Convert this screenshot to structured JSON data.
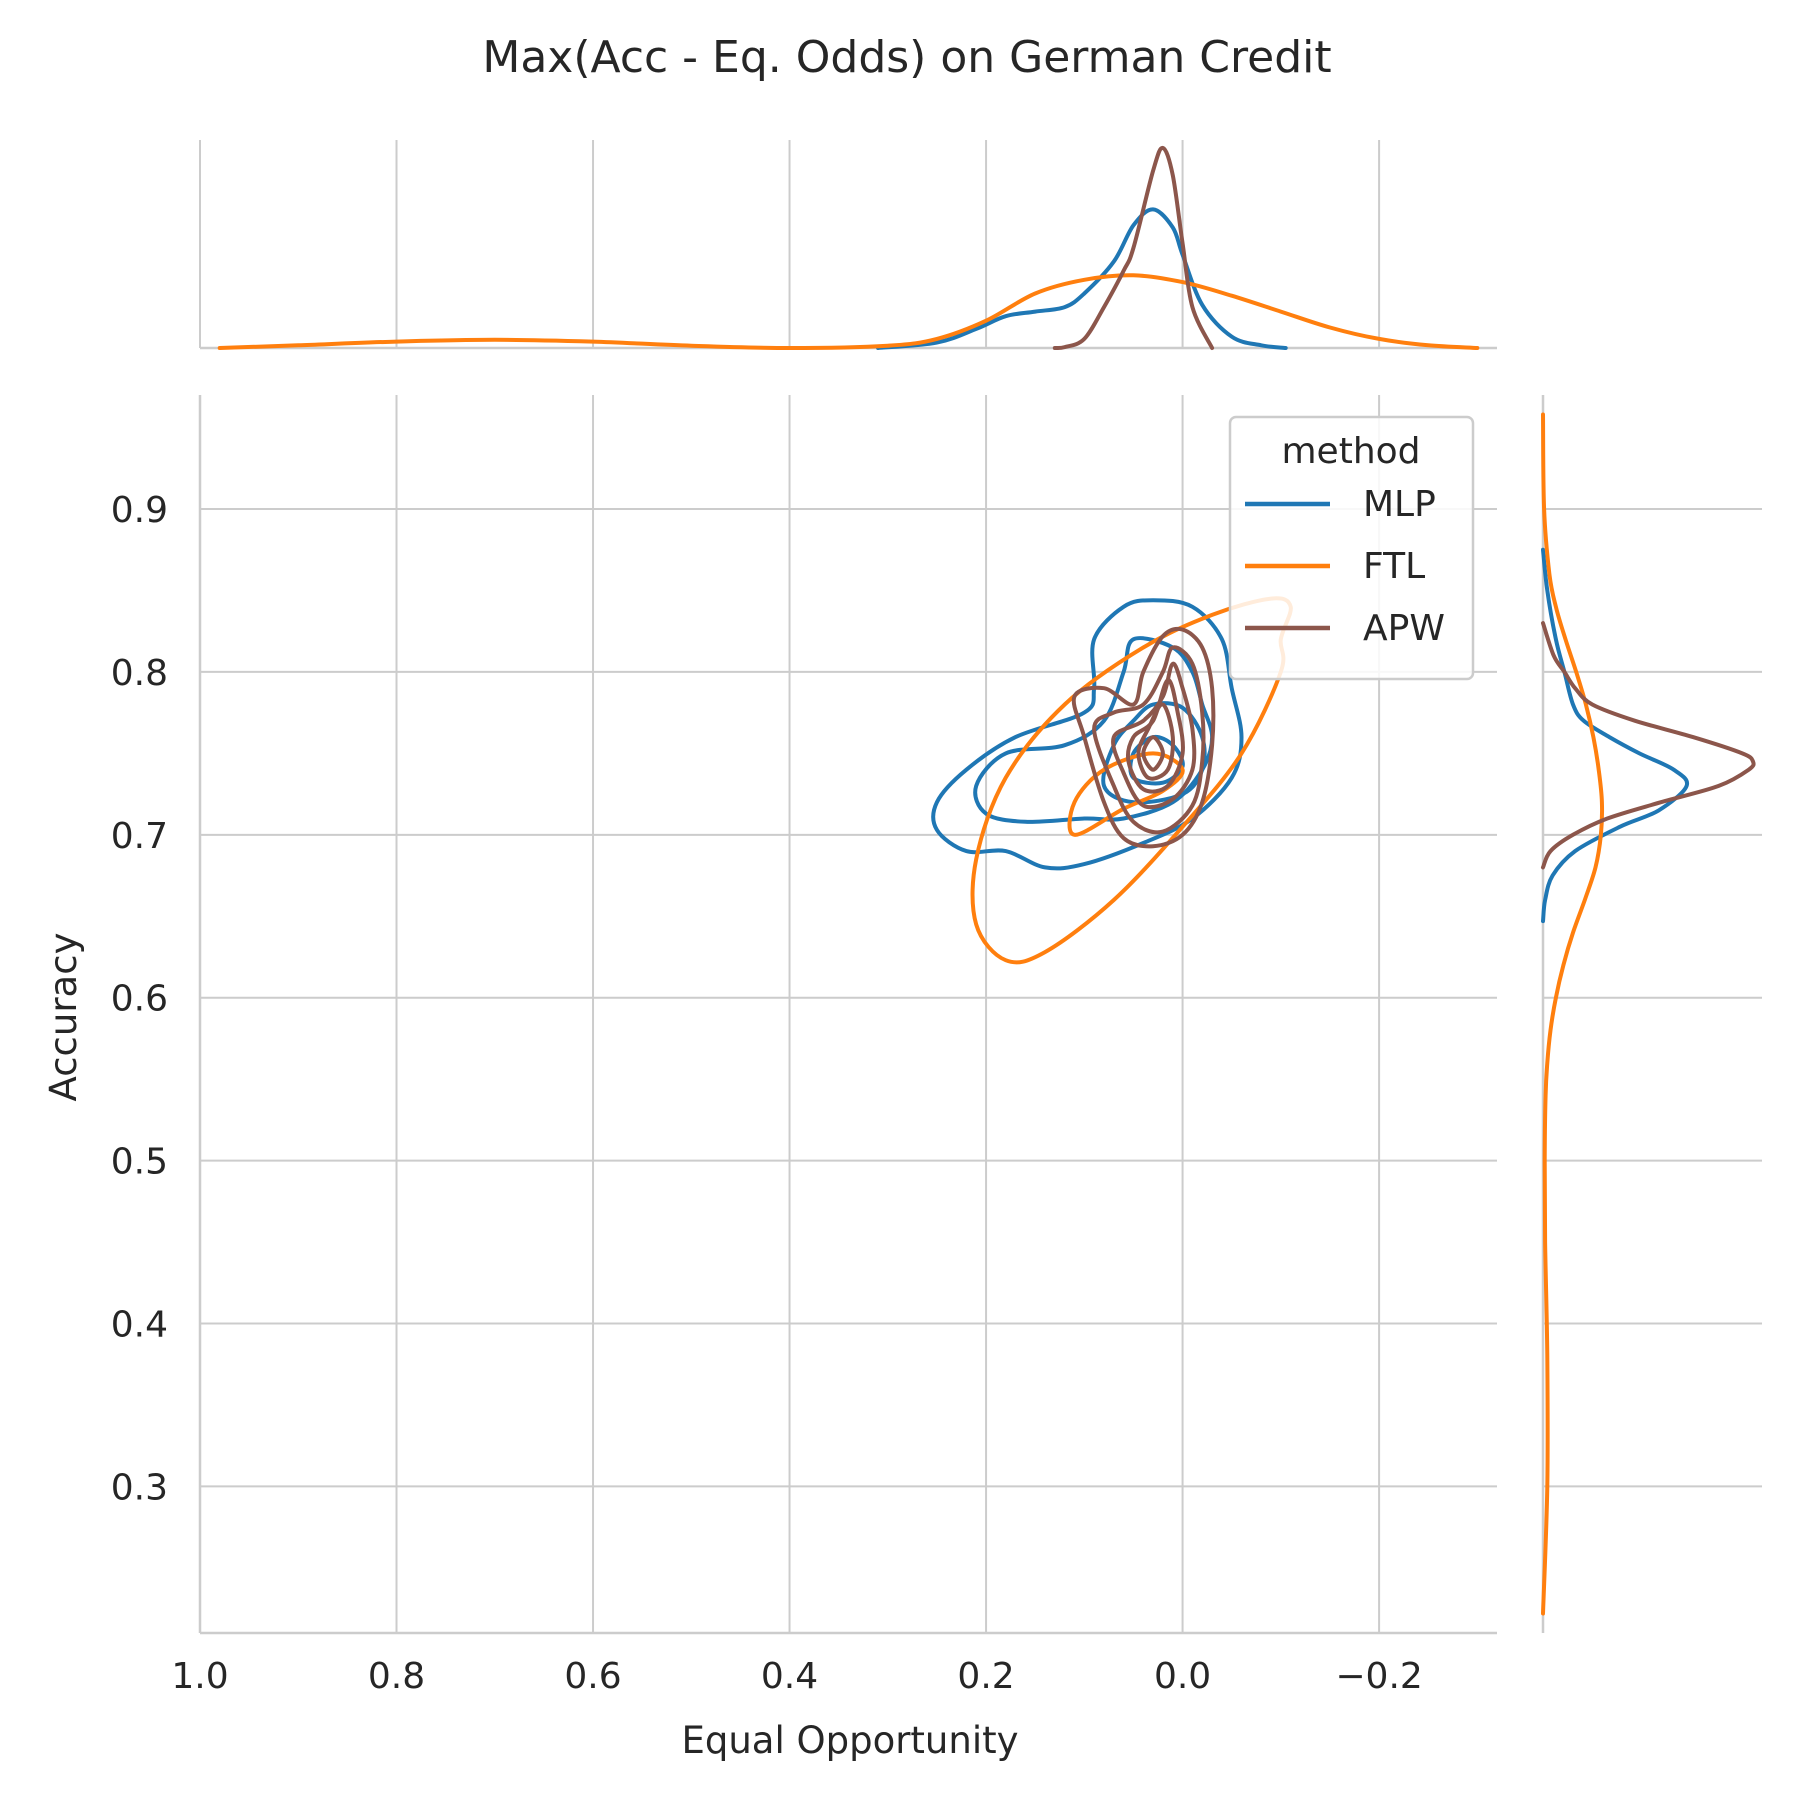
{
  "chart_data": {
    "type": "kde-jointplot",
    "title": "Max(Acc - Eq. Odds) on German Credit",
    "xlabel": "Equal Opportunity",
    "ylabel": "Accuracy",
    "x_inverted": true,
    "xlim": [
      1.0,
      -0.32
    ],
    "ylim": [
      0.21,
      0.97
    ],
    "x_ticks": [
      1.0,
      0.8,
      0.6,
      0.4,
      0.2,
      0.0,
      -0.2
    ],
    "x_tick_labels": [
      "1.0",
      "0.8",
      "0.6",
      "0.4",
      "0.2",
      "0.0",
      "−0.2"
    ],
    "y_ticks": [
      0.3,
      0.4,
      0.5,
      0.6,
      0.7,
      0.8,
      0.9
    ],
    "y_tick_labels": [
      "0.3",
      "0.4",
      "0.5",
      "0.6",
      "0.7",
      "0.8",
      "0.9"
    ],
    "grid": true,
    "legend": {
      "title": "method",
      "placement": "top-right",
      "entries": [
        "MLP",
        "FTL",
        "APW"
      ]
    },
    "series": [
      {
        "name": "MLP",
        "color": "#1f77b4",
        "contours": [
          [
            [
              0.03,
              0.844
            ],
            [
              -0.01,
              0.84
            ],
            [
              -0.04,
              0.82
            ],
            [
              -0.05,
              0.79
            ],
            [
              -0.06,
              0.76
            ],
            [
              -0.05,
              0.735
            ],
            [
              -0.01,
              0.71
            ],
            [
              0.04,
              0.695
            ],
            [
              0.1,
              0.682
            ],
            [
              0.14,
              0.68
            ],
            [
              0.18,
              0.69
            ],
            [
              0.22,
              0.69
            ],
            [
              0.25,
              0.703
            ],
            [
              0.25,
              0.72
            ],
            [
              0.22,
              0.74
            ],
            [
              0.17,
              0.76
            ],
            [
              0.1,
              0.775
            ],
            [
              0.09,
              0.79
            ],
            [
              0.09,
              0.82
            ],
            [
              0.06,
              0.84
            ],
            [
              0.03,
              0.844
            ]
          ],
          [
            [
              0.05,
              0.82
            ],
            [
              0.01,
              0.815
            ],
            [
              -0.01,
              0.8
            ],
            [
              -0.02,
              0.78
            ],
            [
              -0.03,
              0.76
            ],
            [
              -0.02,
              0.74
            ],
            [
              0.01,
              0.72
            ],
            [
              0.06,
              0.71
            ],
            [
              0.1,
              0.71
            ],
            [
              0.16,
              0.708
            ],
            [
              0.2,
              0.713
            ],
            [
              0.21,
              0.73
            ],
            [
              0.18,
              0.75
            ],
            [
              0.12,
              0.755
            ],
            [
              0.08,
              0.77
            ],
            [
              0.06,
              0.8
            ],
            [
              0.05,
              0.82
            ]
          ],
          [
            [
              0.03,
              0.78
            ],
            [
              0.0,
              0.778
            ],
            [
              -0.02,
              0.76
            ],
            [
              -0.02,
              0.74
            ],
            [
              0.0,
              0.725
            ],
            [
              0.05,
              0.72
            ],
            [
              0.08,
              0.73
            ],
            [
              0.07,
              0.755
            ],
            [
              0.05,
              0.77
            ],
            [
              0.03,
              0.78
            ]
          ],
          [
            [
              0.03,
              0.76
            ],
            [
              0.01,
              0.755
            ],
            [
              0.0,
              0.742
            ],
            [
              0.02,
              0.732
            ],
            [
              0.05,
              0.735
            ],
            [
              0.05,
              0.75
            ],
            [
              0.03,
              0.76
            ]
          ]
        ],
        "x_marginal": {
          "x": [
            -0.105,
            -0.08,
            -0.05,
            -0.02,
            0.0,
            0.01,
            0.03,
            0.05,
            0.07,
            0.1,
            0.12,
            0.15,
            0.18,
            0.21,
            0.25,
            0.31
          ],
          "density": [
            0.0,
            0.06,
            0.25,
            0.95,
            2.05,
            2.65,
            3.05,
            2.7,
            1.9,
            1.2,
            0.9,
            0.8,
            0.7,
            0.42,
            0.12,
            0.0
          ]
        },
        "y_marginal": {
          "y": [
            0.647,
            0.66,
            0.675,
            0.69,
            0.705,
            0.715,
            0.73,
            0.74,
            0.75,
            0.76,
            0.77,
            0.78,
            0.8,
            0.82,
            0.85,
            0.875
          ],
          "density": [
            0.0,
            0.1,
            0.45,
            1.5,
            3.6,
            5.4,
            6.7,
            6.1,
            4.5,
            3.1,
            1.9,
            1.4,
            1.0,
            0.6,
            0.2,
            0.0
          ]
        }
      },
      {
        "name": "FTL",
        "color": "#ff7f0e",
        "contours": [
          [
            [
              -0.1,
              0.82
            ],
            [
              -0.11,
              0.84
            ],
            [
              -0.09,
              0.845
            ],
            [
              -0.03,
              0.835
            ],
            [
              0.04,
              0.815
            ],
            [
              0.12,
              0.78
            ],
            [
              0.18,
              0.735
            ],
            [
              0.21,
              0.685
            ],
            [
              0.21,
              0.645
            ],
            [
              0.18,
              0.623
            ],
            [
              0.14,
              0.628
            ],
            [
              0.07,
              0.66
            ],
            [
              0.0,
              0.705
            ],
            [
              -0.06,
              0.75
            ],
            [
              -0.1,
              0.8
            ],
            [
              -0.1,
              0.82
            ]
          ],
          [
            [
              0.11,
              0.7
            ],
            [
              0.06,
              0.716
            ],
            [
              0.02,
              0.727
            ],
            [
              0.0,
              0.74
            ],
            [
              0.03,
              0.75
            ],
            [
              0.08,
              0.74
            ],
            [
              0.11,
              0.72
            ],
            [
              0.11,
              0.7
            ]
          ]
        ],
        "x_marginal": {
          "x": [
            0.98,
            0.9,
            0.8,
            0.7,
            0.6,
            0.5,
            0.4,
            0.3,
            0.25,
            0.2,
            0.15,
            0.1,
            0.05,
            0.0,
            -0.05,
            -0.1,
            -0.15,
            -0.2,
            -0.25,
            -0.3
          ],
          "density": [
            0.0,
            0.06,
            0.14,
            0.18,
            0.14,
            0.05,
            0.0,
            0.05,
            0.2,
            0.6,
            1.2,
            1.5,
            1.6,
            1.45,
            1.15,
            0.8,
            0.45,
            0.2,
            0.06,
            0.0
          ]
        },
        "y_marginal": {
          "y": [
            0.222,
            0.3,
            0.38,
            0.45,
            0.5,
            0.54,
            0.56,
            0.58,
            0.6,
            0.62,
            0.64,
            0.66,
            0.68,
            0.7,
            0.72,
            0.74,
            0.76,
            0.78,
            0.8,
            0.82,
            0.84,
            0.86,
            0.9,
            0.958
          ],
          "density": [
            0.0,
            0.2,
            0.2,
            0.1,
            0.08,
            0.12,
            0.2,
            0.35,
            0.6,
            0.95,
            1.4,
            1.95,
            2.45,
            2.7,
            2.75,
            2.6,
            2.35,
            2.0,
            1.55,
            1.05,
            0.6,
            0.3,
            0.05,
            0.0
          ]
        }
      },
      {
        "name": "APW",
        "color": "#8c564b",
        "contours": [
          [
            [
              0.0,
              0.826
            ],
            [
              -0.02,
              0.815
            ],
            [
              -0.03,
              0.79
            ],
            [
              -0.03,
              0.755
            ],
            [
              -0.02,
              0.72
            ],
            [
              0.0,
              0.7
            ],
            [
              0.03,
              0.693
            ],
            [
              0.06,
              0.698
            ],
            [
              0.08,
              0.72
            ],
            [
              0.1,
              0.76
            ],
            [
              0.11,
              0.785
            ],
            [
              0.08,
              0.79
            ],
            [
              0.05,
              0.78
            ],
            [
              0.04,
              0.8
            ],
            [
              0.02,
              0.822
            ],
            [
              0.0,
              0.826
            ]
          ],
          [
            [
              0.01,
              0.815
            ],
            [
              -0.01,
              0.805
            ],
            [
              -0.02,
              0.775
            ],
            [
              -0.02,
              0.745
            ],
            [
              -0.01,
              0.718
            ],
            [
              0.02,
              0.702
            ],
            [
              0.05,
              0.708
            ],
            [
              0.07,
              0.73
            ],
            [
              0.09,
              0.765
            ],
            [
              0.07,
              0.775
            ],
            [
              0.04,
              0.78
            ],
            [
              0.02,
              0.8
            ],
            [
              0.01,
              0.815
            ]
          ],
          [
            [
              0.01,
              0.805
            ],
            [
              0.0,
              0.79
            ],
            [
              -0.01,
              0.765
            ],
            [
              -0.01,
              0.74
            ],
            [
              0.01,
              0.722
            ],
            [
              0.04,
              0.718
            ],
            [
              0.06,
              0.738
            ],
            [
              0.07,
              0.76
            ],
            [
              0.04,
              0.77
            ],
            [
              0.02,
              0.785
            ],
            [
              0.01,
              0.805
            ]
          ],
          [
            [
              0.015,
              0.795
            ],
            [
              0.005,
              0.775
            ],
            [
              0.0,
              0.75
            ],
            [
              0.015,
              0.73
            ],
            [
              0.04,
              0.728
            ],
            [
              0.055,
              0.745
            ],
            [
              0.05,
              0.76
            ],
            [
              0.03,
              0.77
            ],
            [
              0.015,
              0.795
            ]
          ],
          [
            [
              0.02,
              0.78
            ],
            [
              0.01,
              0.76
            ],
            [
              0.015,
              0.74
            ],
            [
              0.035,
              0.735
            ],
            [
              0.045,
              0.75
            ],
            [
              0.035,
              0.765
            ],
            [
              0.02,
              0.78
            ]
          ],
          [
            [
              0.03,
              0.76
            ],
            [
              0.02,
              0.75
            ],
            [
              0.03,
              0.74
            ],
            [
              0.04,
              0.75
            ],
            [
              0.03,
              0.76
            ]
          ]
        ],
        "x_marginal": {
          "x": [
            -0.03,
            -0.01,
            0.0,
            0.01,
            0.02,
            0.03,
            0.05,
            0.06,
            0.08,
            0.1,
            0.12,
            0.13
          ],
          "density": [
            0.0,
            0.9,
            2.3,
            3.8,
            4.4,
            3.9,
            2.2,
            1.7,
            0.9,
            0.2,
            0.02,
            0.0
          ]
        },
        "y_marginal": {
          "y": [
            0.68,
            0.69,
            0.7,
            0.71,
            0.72,
            0.73,
            0.74,
            0.745,
            0.75,
            0.76,
            0.77,
            0.78,
            0.79,
            0.8,
            0.81,
            0.83
          ],
          "density": [
            0.0,
            0.35,
            1.4,
            3.0,
            5.5,
            8.2,
            9.6,
            9.8,
            9.3,
            7.0,
            4.3,
            2.3,
            1.5,
            1.0,
            0.5,
            0.0
          ]
        }
      }
    ]
  }
}
